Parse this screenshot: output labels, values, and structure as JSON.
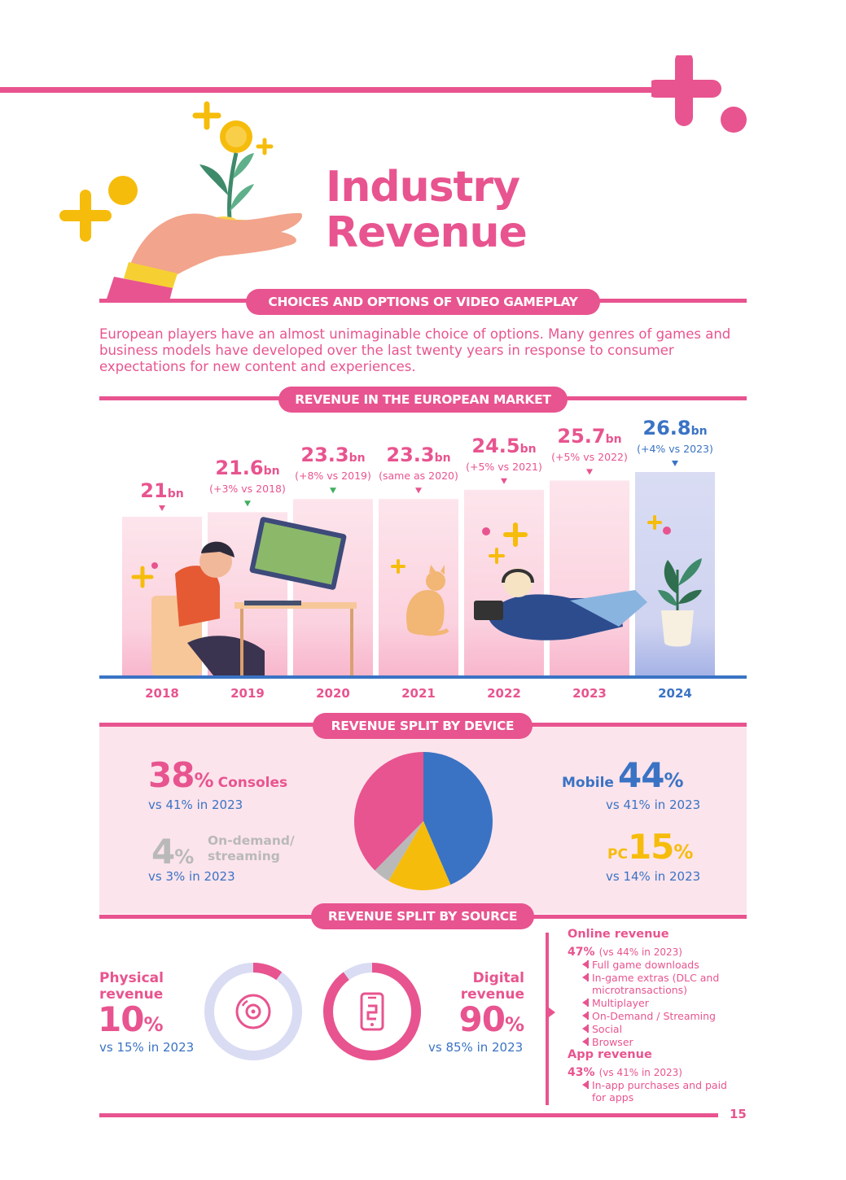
{
  "page": {
    "title_line1": "Industry",
    "title_line2": "Revenue",
    "page_number": "15"
  },
  "colors": {
    "pink": "#e8548f",
    "blue": "#3a73c4",
    "yellow": "#f6bc0c",
    "grey": "#b9b9b9",
    "light_pink": "#fce4ec"
  },
  "sections": {
    "choices": "CHOICES AND OPTIONS OF VIDEO GAMEPLAY",
    "market": "REVENUE IN THE EUROPEAN MARKET",
    "device": "REVENUE SPLIT BY DEVICE",
    "source": "REVENUE SPLIT BY SOURCE"
  },
  "intro_text": "European players have an almost unimaginable choice of options. Many genres of games and business models have developed over the last twenty years in response to consumer expectations for new content and experiences.",
  "chart_data": [
    {
      "type": "bar",
      "title": "REVENUE IN THE EUROPEAN MARKET",
      "categories": [
        "2018",
        "2019",
        "2020",
        "2021",
        "2022",
        "2023",
        "2024"
      ],
      "values": [
        21,
        21.6,
        23.3,
        23.3,
        24.5,
        25.7,
        26.8
      ],
      "value_labels": [
        "21",
        "21.6",
        "23.3",
        "23.3",
        "24.5",
        "25.7",
        "26.8"
      ],
      "unit": "bn",
      "changes": [
        "",
        "(+3% vs 2018)",
        "(+8% vs 2019)",
        "(same as 2020)",
        "(+5% vs 2021)",
        "(+5% vs 2022)",
        "(+4% vs 2023)"
      ],
      "highlight": "2024"
    },
    {
      "type": "pie",
      "title": "REVENUE SPLIT BY DEVICE",
      "slices": [
        {
          "label": "Mobile",
          "value": 44,
          "color": "#3a73c4",
          "display": "44",
          "compare": "vs 41% in 2023"
        },
        {
          "label": "PC",
          "value": 15,
          "color": "#f6bc0c",
          "display": "15",
          "compare": "vs 14% in 2023"
        },
        {
          "label": "On-demand/ streaming",
          "value": 4,
          "color": "#b9b9b9",
          "display": "4",
          "compare": "vs 3% in 2023"
        },
        {
          "label": "Consoles",
          "value": 38,
          "color": "#e8548f",
          "display": "38",
          "compare": "vs 41% in 2023"
        }
      ]
    },
    {
      "type": "pie",
      "title": "REVENUE SPLIT BY SOURCE",
      "slices": [
        {
          "label": "Physical revenue",
          "value": 10,
          "display": "10",
          "compare": "vs 15% in 2023"
        },
        {
          "label": "Digital revenue",
          "value": 90,
          "display": "90",
          "compare": "vs 85% in 2023"
        }
      ]
    }
  ],
  "device_labels": {
    "consoles_label": "Consoles",
    "ondemand_line1": "On-demand/",
    "ondemand_line2": "streaming",
    "mobile_label": "Mobile",
    "pc_label": "PC",
    "pct": "%"
  },
  "source_labels": {
    "physical_line1": "Physical",
    "physical_line2": "revenue",
    "digital_line1": "Digital",
    "digital_line2": "revenue",
    "pct": "%"
  },
  "online": {
    "heading": "Online revenue",
    "value": "47%",
    "compare": "(vs 44% in 2023)",
    "items": [
      "Full game downloads",
      "In-game extras (DLC and microtransactions)",
      "Multiplayer",
      "On-Demand / Streaming",
      "Social",
      "Browser"
    ]
  },
  "app": {
    "heading": "App revenue",
    "value": "43%",
    "compare": "(vs 41% in 2023)",
    "items": [
      "In-app purchases and paid for apps"
    ]
  }
}
